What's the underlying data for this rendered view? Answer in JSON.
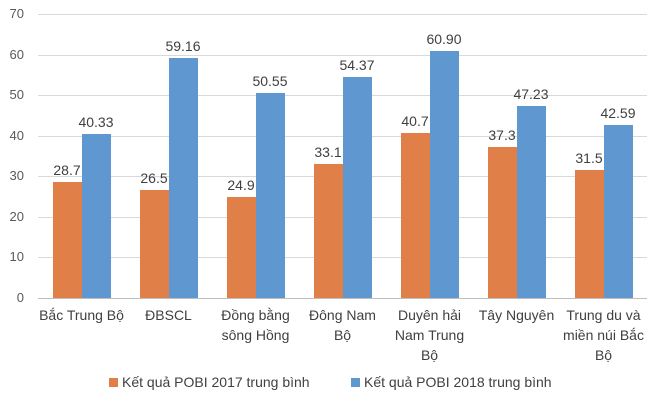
{
  "chart_data": {
    "type": "bar",
    "title": "",
    "xlabel": "",
    "ylabel": "",
    "ylim": [
      0,
      70
    ],
    "yticks": [
      0,
      10,
      20,
      30,
      40,
      50,
      60,
      70
    ],
    "grid": true,
    "legend_position": "bottom",
    "categories": [
      "Bắc Trung Bộ",
      "ĐBSCL",
      "Đồng bằng sông Hồng",
      "Đông Nam Bộ",
      "Duyên hải Nam Trung Bộ",
      "Tây Nguyên",
      "Trung du và miền núi Bắc Bộ"
    ],
    "category_lines": [
      [
        "Bắc Trung Bộ"
      ],
      [
        "ĐBSCL"
      ],
      [
        "Đồng bằng",
        "sông Hồng"
      ],
      [
        "Đông Nam",
        "Bộ"
      ],
      [
        "Duyên hải",
        "Nam Trung",
        "Bộ"
      ],
      [
        "Tây Nguyên"
      ],
      [
        "Trung du và",
        "miền núi Bắc",
        "Bộ"
      ]
    ],
    "series": [
      {
        "name": "Kết quả POBI 2017 trung bình",
        "color": "#e07f47",
        "values": [
          28.7,
          26.5,
          24.9,
          33.1,
          40.7,
          37.3,
          31.5
        ],
        "labels": [
          "28.7",
          "26.5",
          "24.9",
          "33.1",
          "40.7",
          "37.3",
          "31.5"
        ]
      },
      {
        "name": "Kết quả POBI 2018 trung bình",
        "color": "#5f98d0",
        "values": [
          40.33,
          59.16,
          50.55,
          54.37,
          60.9,
          47.23,
          42.59
        ],
        "labels": [
          "40.33",
          "59.16",
          "50.55",
          "54.37",
          "60.90",
          "47.23",
          "42.59"
        ]
      }
    ]
  }
}
